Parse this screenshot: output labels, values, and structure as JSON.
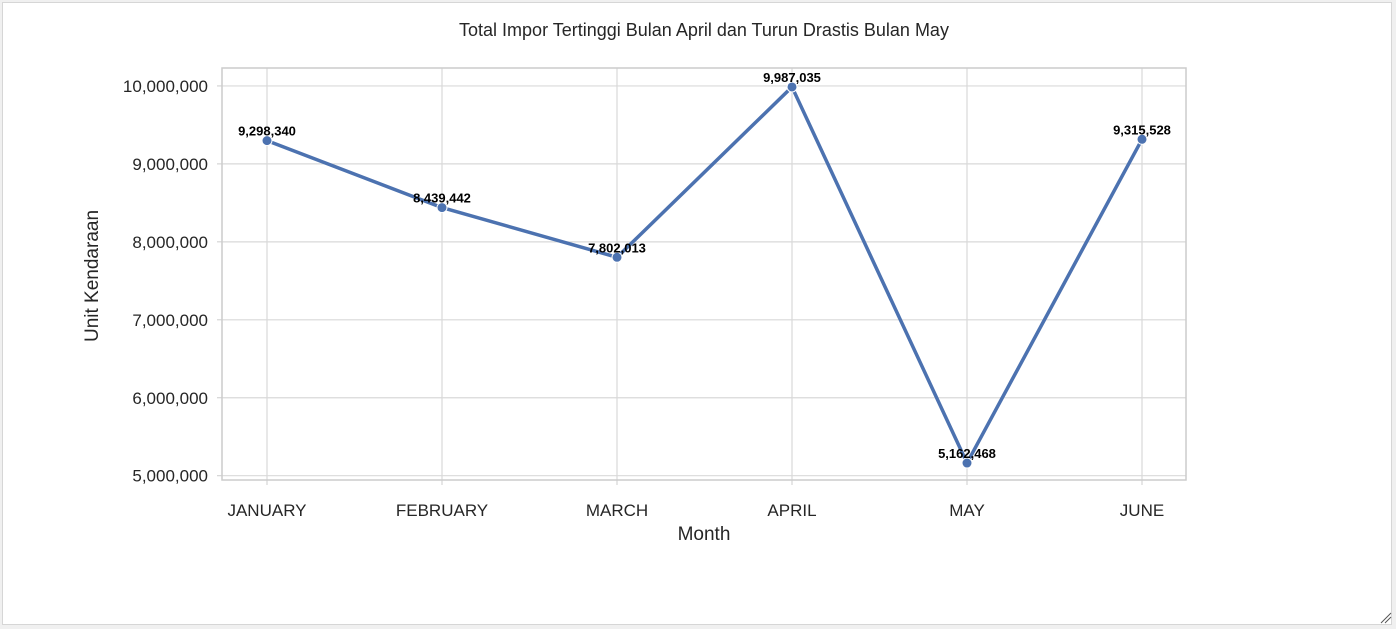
{
  "chart_data": {
    "type": "line",
    "title": "Total Impor Tertinggi Bulan April dan Turun Drastis Bulan May",
    "xlabel": "Month",
    "ylabel": "Unit Kendaraan",
    "categories": [
      "JANUARY",
      "FEBRUARY",
      "MARCH",
      "APRIL",
      "MAY",
      "JUNE"
    ],
    "values": [
      9298340,
      8439442,
      7802013,
      9987035,
      5162468,
      9315528
    ],
    "data_labels": [
      "9,298,340",
      "8,439,442",
      "7,802,013",
      "9,987,035",
      "5,162,468",
      "9,315,528"
    ],
    "y_ticks": [
      5000000,
      6000000,
      7000000,
      8000000,
      9000000,
      10000000
    ],
    "y_tick_labels": [
      "5,000,000",
      "6,000,000",
      "7,000,000",
      "8,000,000",
      "9,000,000",
      "10,000,000"
    ],
    "ylim": [
      4945000,
      10230000
    ],
    "grid": true,
    "line_color": "#4c72b0",
    "marker": "circle"
  }
}
